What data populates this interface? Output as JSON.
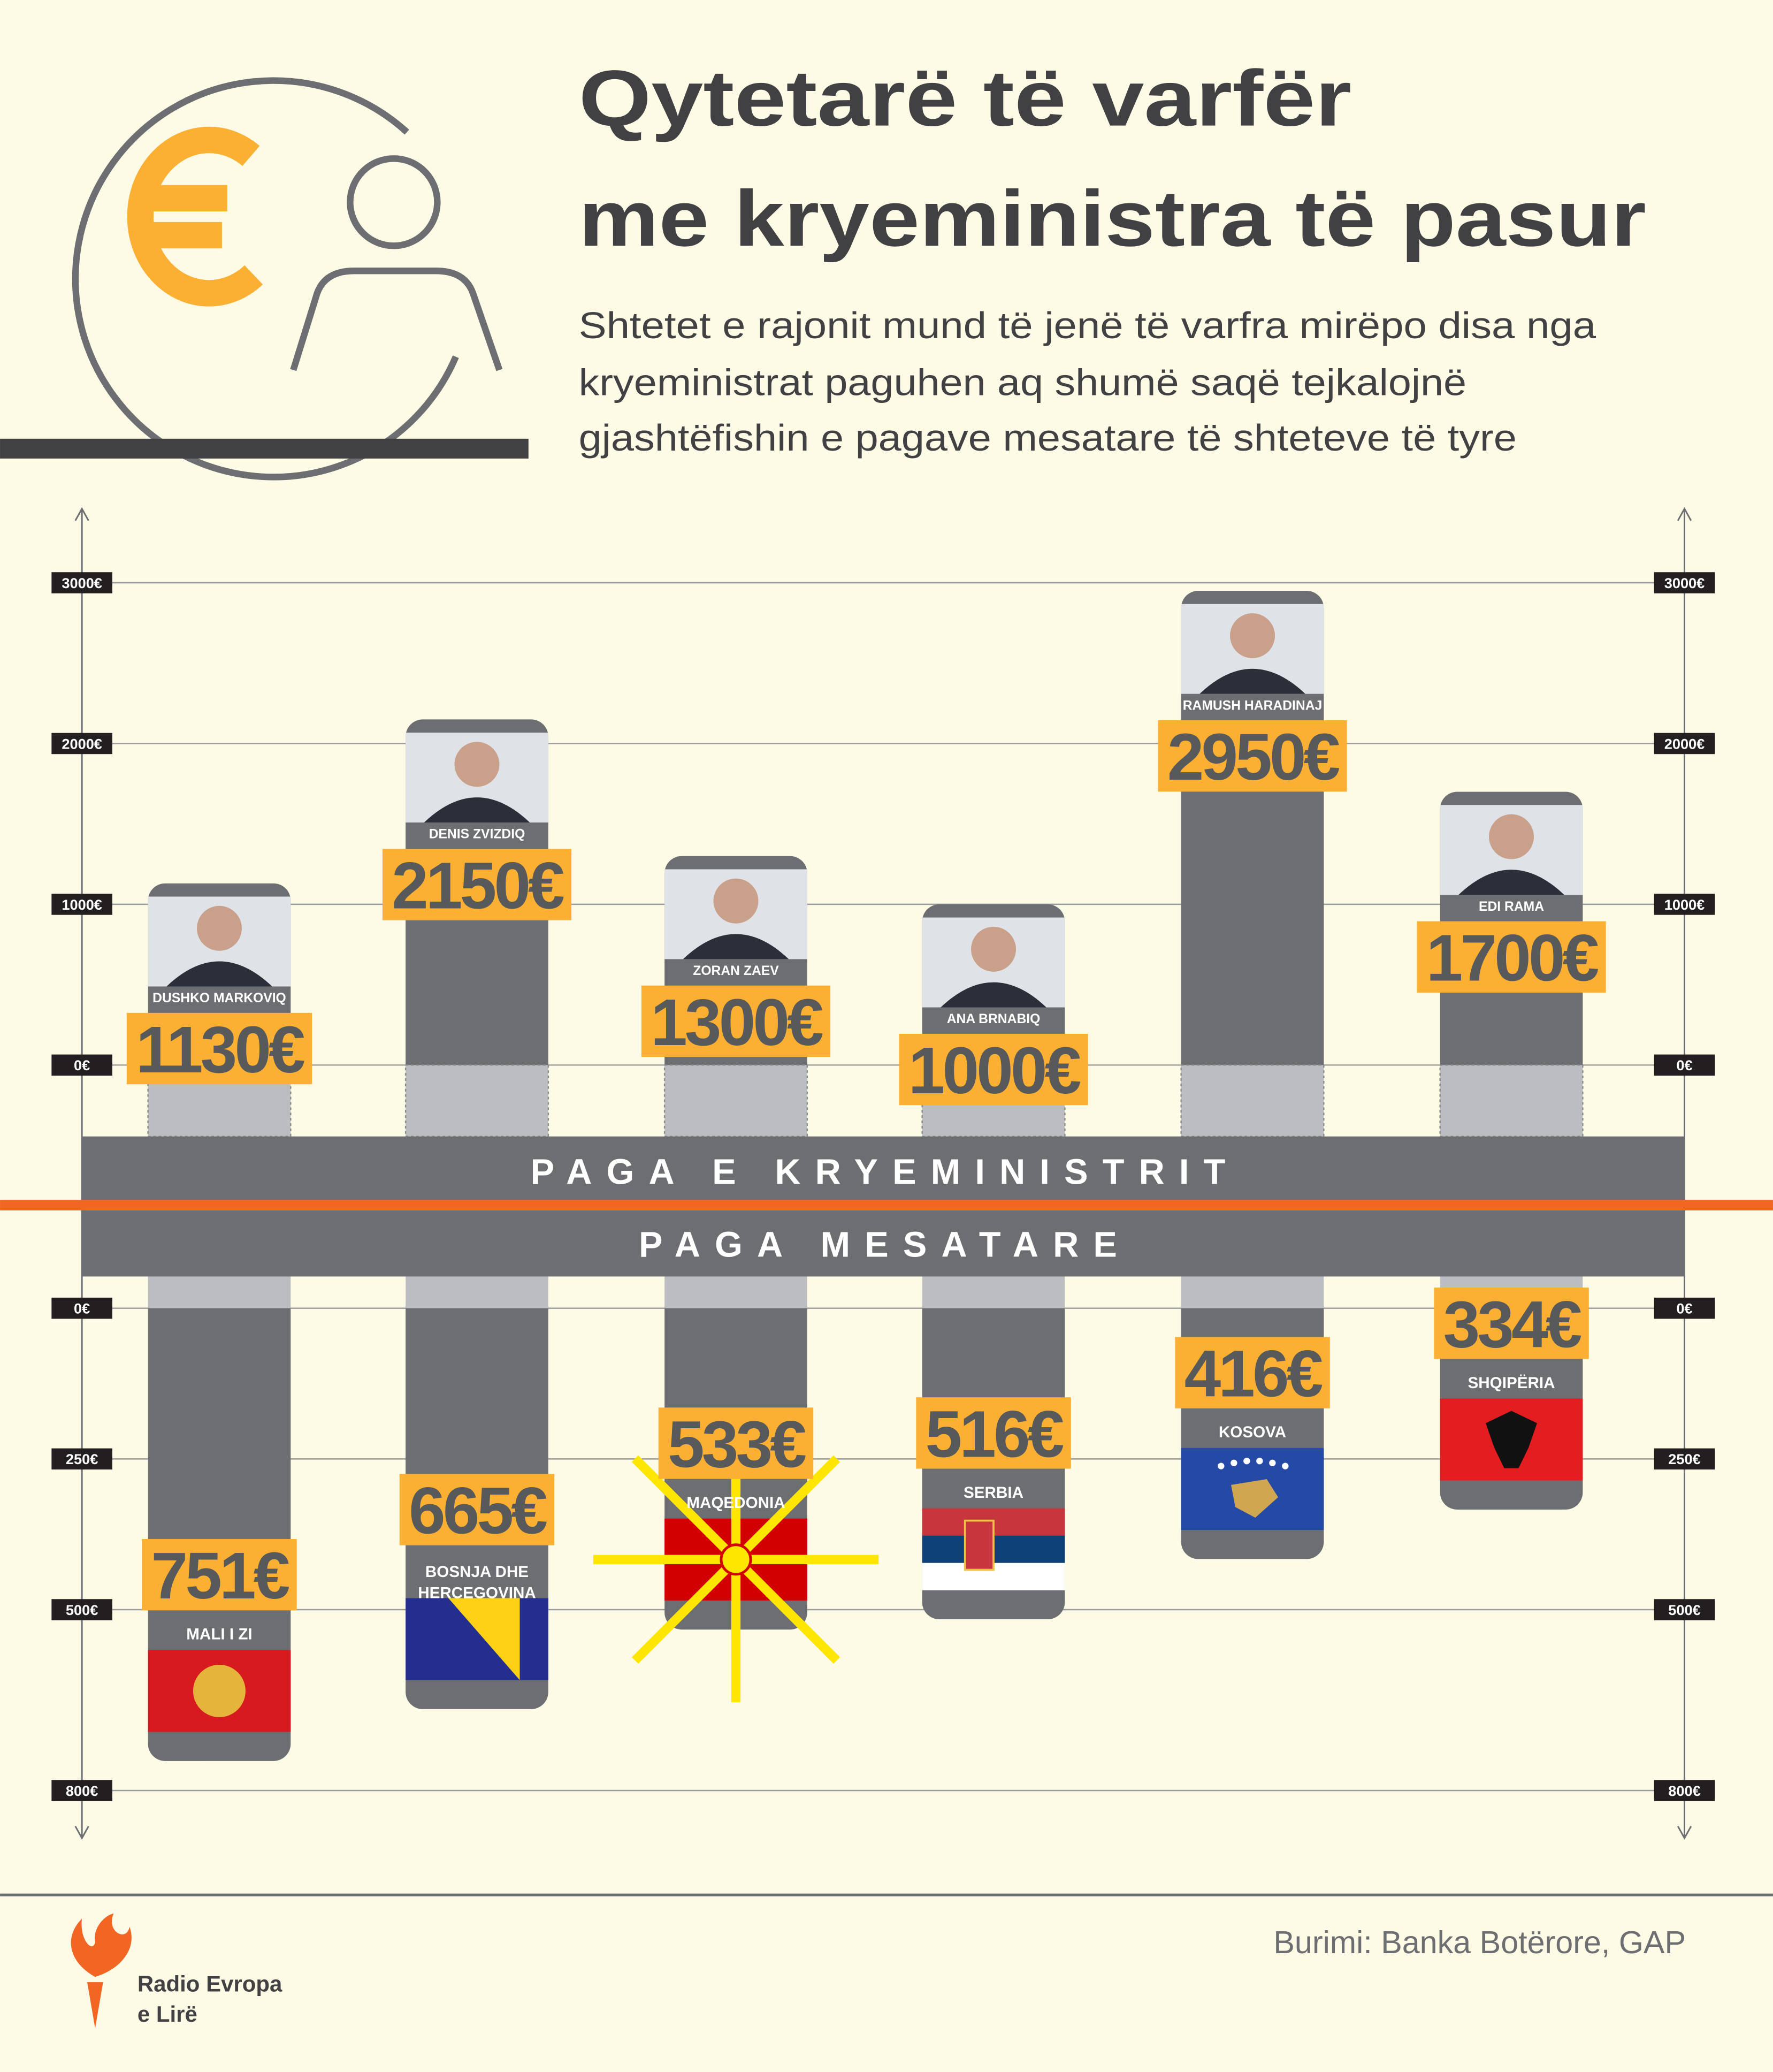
{
  "header": {
    "title": [
      "Qytetarë të varfër",
      "me kryeministra të pasur"
    ],
    "subtitle": [
      "Shtetet e rajonit mund të jenë të varfra mirëpo disa nga",
      "kryeministrat paguhen aq shumë saqë tejkalojnë",
      "gjashtëfishin e pagave mesatare të shteteve të tyre"
    ]
  },
  "chart_data": [
    {
      "type": "bar",
      "direction": "up",
      "title": "PAGA E KRYEMINISTRIT",
      "categories": [
        "DUSHKO MARKOVIQ",
        "DENIS ZVIZDIQ",
        "ZORAN ZAEV",
        "ANA BRNABIQ",
        "RAMUSH HARADINAJ",
        "EDI RAMA"
      ],
      "values": [
        1130,
        2150,
        1300,
        1000,
        2950,
        1700
      ],
      "value_labels": [
        "1130€",
        "2150€",
        "1300€",
        "1000€",
        "2950€",
        "1700€"
      ],
      "ylim": [
        0,
        3000
      ],
      "yticks": [
        {
          "value": 0,
          "label": "0€"
        },
        {
          "value": 1000,
          "label": "1000€"
        },
        {
          "value": 2000,
          "label": "2000€"
        },
        {
          "value": 3000,
          "label": "3000€"
        }
      ],
      "color": "#6d6e71",
      "label_color": "#fbb034",
      "grid": true
    },
    {
      "type": "bar",
      "direction": "down",
      "title": "PAGA MESATARE",
      "categories": [
        "MALI I ZI",
        "BOSNJA DHE HERCEGOVINA",
        "MAQEDONIA",
        "SERBIA",
        "KOSOVA",
        "SHQIPËRIA"
      ],
      "values": [
        751,
        665,
        533,
        516,
        416,
        334
      ],
      "value_labels": [
        "751€",
        "665€",
        "533€",
        "516€",
        "416€",
        "334€"
      ],
      "ylim": [
        0,
        800
      ],
      "yticks": [
        {
          "value": 0,
          "label": "0€"
        },
        {
          "value": 250,
          "label": "250€"
        },
        {
          "value": 500,
          "label": "500€"
        },
        {
          "value": 800,
          "label": "800€"
        }
      ],
      "color": "#6d6e71",
      "label_color": "#fbb034",
      "grid": true
    }
  ],
  "source": "Burimi: Banka Botërore, GAP",
  "logo": [
    "Radio Evropa",
    "e Lirë"
  ]
}
